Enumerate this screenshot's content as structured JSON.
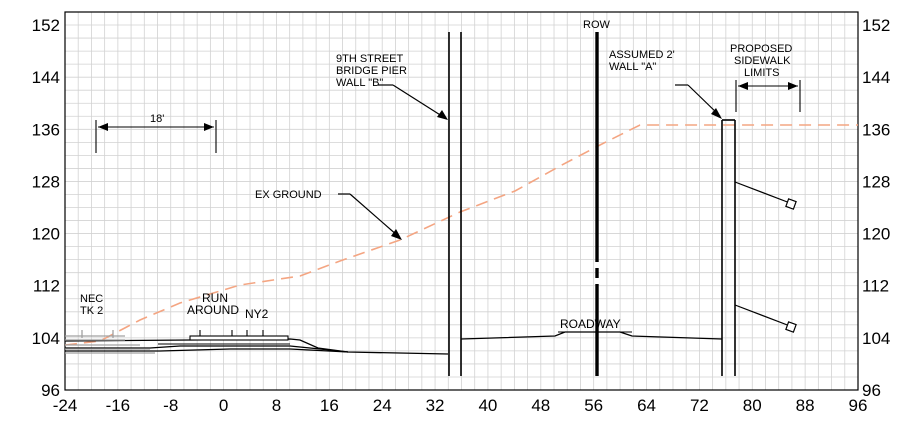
{
  "axes": {
    "x_ticks": [
      "-24",
      "-16",
      "-8",
      "0",
      "8",
      "16",
      "24",
      "32",
      "40",
      "48",
      "56",
      "64",
      "72",
      "80",
      "88",
      "96"
    ],
    "y_ticks": [
      "152",
      "144",
      "136",
      "128",
      "120",
      "112",
      "104",
      "96"
    ]
  },
  "labels": {
    "row": "ROW",
    "pier": [
      "9TH STREET",
      "BRIDGE PIER",
      "WALL \"B\""
    ],
    "wall_a": [
      "ASSUMED 2'",
      "WALL \"A\""
    ],
    "sidewalk": [
      "PROPOSED",
      "SIDEWALK",
      "LIMITS"
    ],
    "dim_18": "18'",
    "ex_ground": "EX GROUND",
    "run_around": [
      "RUN",
      "AROUND"
    ],
    "ny2": "NY2",
    "nec": [
      "NEC",
      "TK 2"
    ],
    "roadway": "ROADWAY"
  },
  "colors": {
    "grid": "#d2d2d2",
    "ground": "#f4a582",
    "line": "#000000",
    "gray_track": "#a0a0a0"
  }
}
